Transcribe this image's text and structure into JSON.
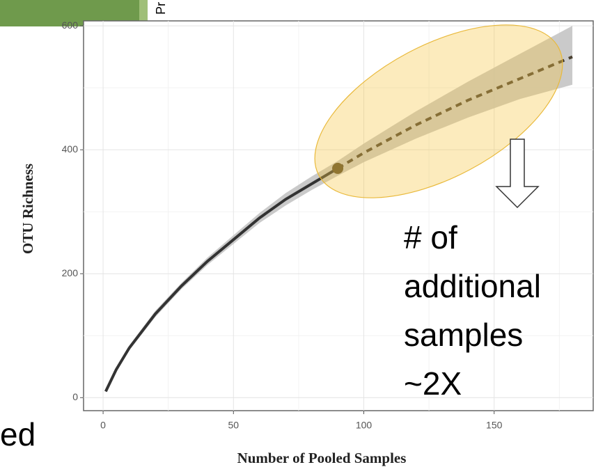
{
  "chart_data": {
    "type": "line",
    "x_label": "Number of Pooled Samples",
    "y_label": "OTU Richness",
    "x": [
      1,
      5,
      10,
      20,
      30,
      40,
      50,
      60,
      70,
      80,
      90,
      100,
      120,
      140,
      160,
      180
    ],
    "series": [
      {
        "color": "#333333",
        "dashed": false,
        "values": [
          10,
          45,
          80,
          135,
          180,
          220,
          255,
          290,
          320,
          345,
          370,
          null,
          null,
          null,
          null,
          null
        ]
      },
      {
        "color": "#4a4030",
        "dashed": true,
        "values": [
          null,
          null,
          null,
          null,
          null,
          null,
          null,
          null,
          null,
          null,
          370,
          395,
          440,
          480,
          515,
          550
        ]
      }
    ],
    "band": {
      "color": "#bdbdbd",
      "lower": [
        8,
        42,
        76,
        130,
        175,
        214,
        248,
        282,
        310,
        335,
        358,
        380,
        418,
        452,
        482,
        505
      ],
      "upper": [
        12,
        48,
        84,
        140,
        185,
        226,
        262,
        298,
        330,
        357,
        382,
        410,
        462,
        510,
        555,
        600
      ]
    },
    "point": {
      "x": 90,
      "y": 370,
      "color": "#5a4a28"
    },
    "xlim": [
      -7.5,
      188
    ],
    "ylim": [
      -21,
      608
    ],
    "xticks": [
      0,
      50,
      100,
      150
    ],
    "yticks": [
      0,
      200,
      400,
      600
    ],
    "x_minor_grid": [
      25,
      75,
      125,
      175
    ],
    "y_minor_grid": [
      100,
      300,
      500
    ],
    "grid": true,
    "annotation": [
      "# of",
      "additional",
      "samples",
      "~2X"
    ],
    "slide_fragment_left": "ed",
    "slide_fragment_top": "Pr"
  }
}
